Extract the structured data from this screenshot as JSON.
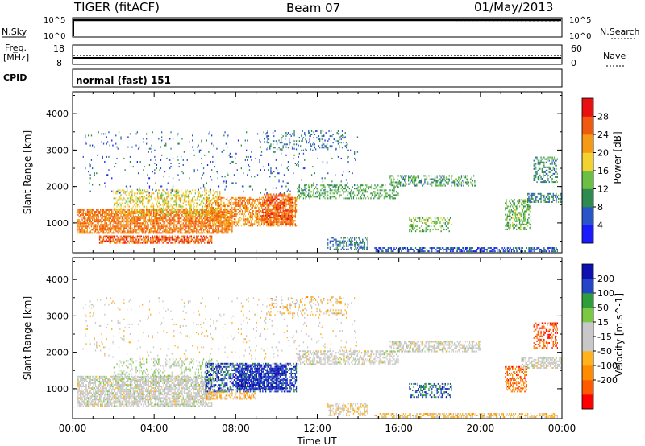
{
  "header": {
    "station": "TIGER (fitACF)",
    "beam": "Beam 07",
    "date": "01/May/2013"
  },
  "status_panels": {
    "nsky_label": "N.Sky",
    "nsearch_label": "N.Search",
    "freq_label_line1": "Freq.",
    "freq_label_line2": "[MHz]",
    "nave_label": "Nave",
    "cpid_label": "CPID",
    "cpid_text": "normal (fast) 151",
    "nsky_ticks": [
      "10^5",
      "10^0"
    ],
    "nsearch_ticks": [
      "10^5",
      "10^0"
    ],
    "freq_ticks": [
      "18",
      "8"
    ],
    "nave_ticks": [
      "60",
      "0"
    ]
  },
  "colors": {
    "power": [
      "#1a1aff",
      "#2a55c8",
      "#2e8a4f",
      "#6bbf45",
      "#f2d22e",
      "#f59a16",
      "#f05a10",
      "#e81010"
    ],
    "velocity": [
      "#ff0000",
      "#ff5a00",
      "#ff8c00",
      "#ffb21e",
      "#c8c8c8",
      "#c8c8c8",
      "#7ac943",
      "#2e9e3a",
      "#2445c8",
      "#1010b0"
    ],
    "ground_scatter": "#c8c8c8"
  },
  "chart_data": [
    {
      "type": "heatmap",
      "title": "",
      "xlabel": "Time UT",
      "ylabel": "Slant Range [km]",
      "colorbar_label": "Power [dB]",
      "colorbar_ticks": [
        "28",
        "24",
        "20",
        "16",
        "12",
        "8",
        "4"
      ],
      "x_ticks": [
        "00:00",
        "04:00",
        "08:00",
        "12:00",
        "16:00",
        "20:00",
        "00:00"
      ],
      "xlim_hours": [
        0,
        24
      ],
      "y_ticks": [
        "4000",
        "3000",
        "2000",
        "1000"
      ],
      "ylim": [
        180,
        4600
      ],
      "clim": [
        0,
        32
      ],
      "scatter_regions": [
        {
          "t0": 0.2,
          "t1": 7.8,
          "r0": 700,
          "r1": 1350,
          "level": 24,
          "density": 0.75
        },
        {
          "t0": 1.3,
          "t1": 6.8,
          "r0": 430,
          "r1": 650,
          "level": 26,
          "density": 0.65
        },
        {
          "t0": 2.0,
          "t1": 7.2,
          "r0": 1200,
          "r1": 1900,
          "level": 18,
          "density": 0.35
        },
        {
          "t0": 6.5,
          "t1": 11.0,
          "r0": 900,
          "r1": 1700,
          "level": 23,
          "density": 0.55
        },
        {
          "t0": 9.3,
          "t1": 10.8,
          "r0": 950,
          "r1": 1800,
          "level": 26,
          "density": 0.7
        },
        {
          "t0": 11.0,
          "t1": 16.0,
          "r0": 1650,
          "r1": 2050,
          "level": 12,
          "density": 0.35
        },
        {
          "t0": 15.5,
          "t1": 19.8,
          "r0": 2000,
          "r1": 2300,
          "level": 11,
          "density": 0.4
        },
        {
          "t0": 12.5,
          "t1": 14.5,
          "r0": 250,
          "r1": 600,
          "level": 8,
          "density": 0.45
        },
        {
          "t0": 14.8,
          "t1": 23.8,
          "r0": 200,
          "r1": 300,
          "level": 6,
          "density": 0.6
        },
        {
          "t0": 16.5,
          "t1": 18.6,
          "r0": 750,
          "r1": 1150,
          "level": 14,
          "density": 0.35
        },
        {
          "t0": 21.2,
          "t1": 22.5,
          "r0": 800,
          "r1": 1650,
          "level": 13,
          "density": 0.45
        },
        {
          "t0": 22.3,
          "t1": 24.0,
          "r0": 1550,
          "r1": 1800,
          "level": 9,
          "density": 0.5
        },
        {
          "t0": 22.6,
          "t1": 23.8,
          "r0": 2100,
          "r1": 2800,
          "level": 10,
          "density": 0.35
        },
        {
          "t0": 0.5,
          "t1": 14.0,
          "r0": 1800,
          "r1": 3500,
          "level": 7,
          "density": 0.04
        },
        {
          "t0": 9.5,
          "t1": 13.5,
          "r0": 3000,
          "r1": 3500,
          "level": 8,
          "density": 0.15
        }
      ]
    },
    {
      "type": "heatmap",
      "title": "",
      "xlabel": "Time UT",
      "ylabel": "Slant Range [km]",
      "colorbar_label": "Velocity [m s^-1]",
      "colorbar_ticks": [
        "200",
        "100",
        "50",
        "15",
        "-15",
        "-50",
        "-100",
        "-200"
      ],
      "x_ticks": [
        "00:00",
        "04:00",
        "08:00",
        "12:00",
        "16:00",
        "20:00",
        "00:00"
      ],
      "xlim_hours": [
        0,
        24
      ],
      "y_ticks": [
        "4000",
        "3000",
        "2000",
        "1000"
      ],
      "ylim": [
        180,
        4600
      ],
      "clim": [
        -250,
        250
      ],
      "scatter_regions": [
        {
          "t0": 0.2,
          "t1": 6.8,
          "r0": 500,
          "r1": 1350,
          "level": 0,
          "density": 0.7
        },
        {
          "t0": 2.0,
          "t1": 7.2,
          "r0": 1200,
          "r1": 1800,
          "level": 40,
          "density": 0.25
        },
        {
          "t0": 6.5,
          "t1": 11.0,
          "r0": 900,
          "r1": 1700,
          "level": 180,
          "density": 0.5
        },
        {
          "t0": 8.0,
          "t1": 10.5,
          "r0": 950,
          "r1": 1650,
          "level": 210,
          "density": 0.6
        },
        {
          "t0": 6.5,
          "t1": 9.0,
          "r0": 700,
          "r1": 900,
          "level": -80,
          "density": 0.4
        },
        {
          "t0": 11.0,
          "t1": 16.0,
          "r0": 1650,
          "r1": 2050,
          "level": 0,
          "density": 0.5
        },
        {
          "t0": 15.5,
          "t1": 20.0,
          "r0": 2000,
          "r1": 2300,
          "level": 0,
          "density": 0.55
        },
        {
          "t0": 12.5,
          "t1": 14.5,
          "r0": 250,
          "r1": 600,
          "level": -40,
          "density": 0.45
        },
        {
          "t0": 14.8,
          "t1": 23.8,
          "r0": 200,
          "r1": 300,
          "level": -60,
          "density": 0.5
        },
        {
          "t0": 16.5,
          "t1": 18.6,
          "r0": 750,
          "r1": 1150,
          "level": 160,
          "density": 0.35
        },
        {
          "t0": 21.2,
          "t1": 22.3,
          "r0": 900,
          "r1": 1600,
          "level": -150,
          "density": 0.5
        },
        {
          "t0": 22.0,
          "t1": 24.0,
          "r0": 1550,
          "r1": 1850,
          "level": 0,
          "density": 0.6
        },
        {
          "t0": 22.6,
          "t1": 23.8,
          "r0": 2100,
          "r1": 2800,
          "level": -180,
          "density": 0.4
        },
        {
          "t0": 0.5,
          "t1": 14.0,
          "r0": 1800,
          "r1": 3500,
          "level": -30,
          "density": 0.04
        },
        {
          "t0": 9.5,
          "t1": 13.5,
          "r0": 3000,
          "r1": 3500,
          "level": -60,
          "density": 0.15
        }
      ]
    }
  ]
}
